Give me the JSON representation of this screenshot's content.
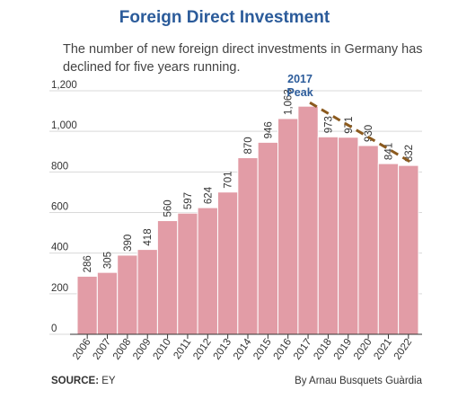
{
  "header": {
    "title": "Foreign Direct Investment",
    "subtitle": "The number of new foreign direct investments in Germany has declined for five years running."
  },
  "footer": {
    "source_label": "SOURCE:",
    "source_value": "EY",
    "byline": "By Arnau Busquets Guàrdia"
  },
  "colors": {
    "bar": "#e29ca6",
    "bar_stroke": "#ffffff",
    "title": "#2b5b9a",
    "trend_line": "#8b5a1e",
    "annotation": "#2b5b9a",
    "gridline": "#d9d9d9"
  },
  "chart_data": {
    "type": "bar",
    "categories": [
      "2006",
      "2007",
      "2008",
      "2009",
      "2010",
      "2011",
      "2012",
      "2013",
      "2014",
      "2015",
      "2016",
      "2017",
      "2018",
      "2019",
      "2020",
      "2021",
      "2022"
    ],
    "values": [
      286,
      305,
      390,
      418,
      560,
      597,
      624,
      701,
      870,
      946,
      1063,
      1124,
      973,
      971,
      930,
      841,
      832
    ],
    "data_labels": [
      "286",
      "305",
      "390",
      "418",
      "560",
      "597",
      "624",
      "701",
      "870",
      "946",
      "1,063",
      "",
      "973",
      "971",
      "930",
      "841",
      "832"
    ],
    "yticks": [
      0,
      200,
      400,
      600,
      800,
      1000,
      1200
    ],
    "ytick_labels": [
      "0",
      "200",
      "400",
      "600",
      "800",
      "1,000",
      "1,200"
    ],
    "ylim": [
      0,
      1200
    ],
    "grid": true,
    "annotation": {
      "lines": [
        "2017",
        "Peak"
      ],
      "category": "2017"
    },
    "trend_line": {
      "from_category": "2017",
      "to_category": "2022",
      "style": "dashed"
    }
  }
}
